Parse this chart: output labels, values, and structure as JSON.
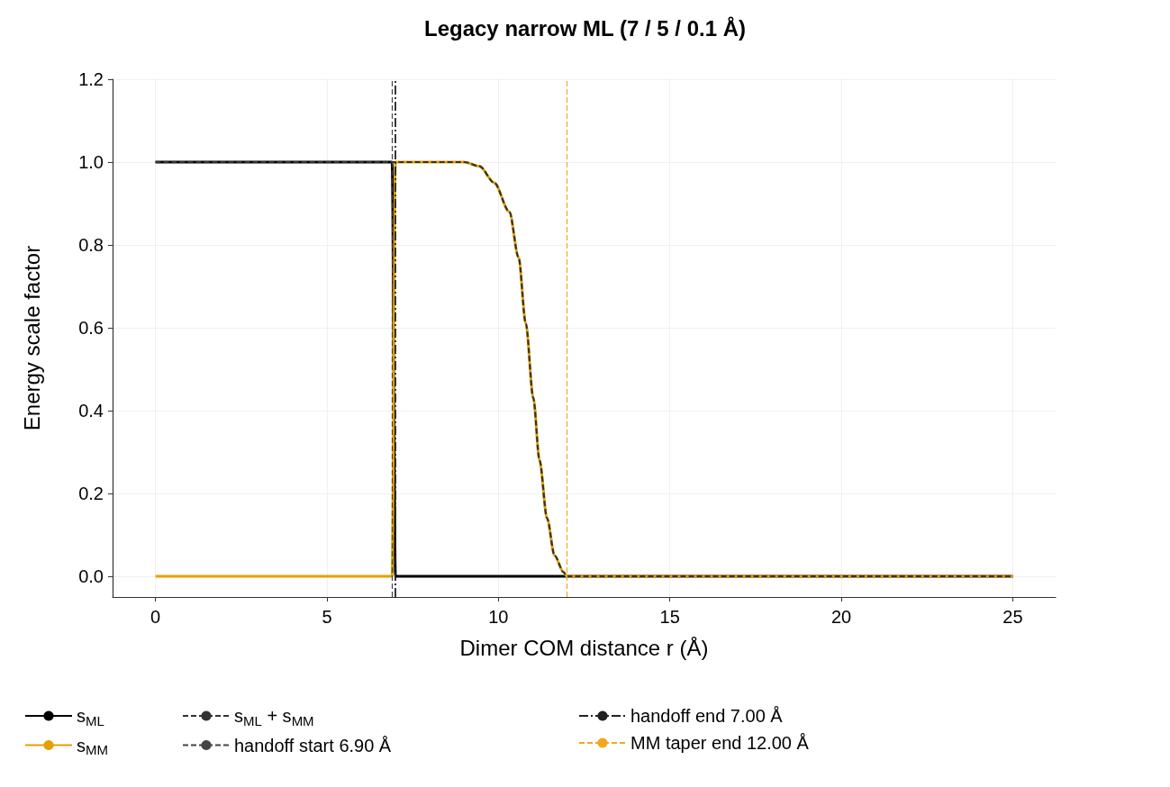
{
  "chart_data": {
    "type": "line",
    "title": "Legacy narrow ML (7 / 5 / 0.1 Å)",
    "xlabel": "Dimer COM distance r (Å)",
    "ylabel": "Energy scale factor",
    "x": [
      0,
      6.9,
      7.0,
      9.0,
      9.45,
      9.88,
      10.32,
      10.59,
      10.8,
      11.02,
      11.2,
      11.42,
      11.64,
      11.9,
      12.0,
      25
    ],
    "series": [
      {
        "name": "s$_{ML}$",
        "color": "#000000",
        "values": [
          1,
          1,
          0,
          0,
          0,
          0,
          0,
          0,
          0,
          0,
          0,
          0,
          0,
          0,
          0,
          0
        ]
      },
      {
        "name": "s$_{MM}$",
        "color": "#e69f00",
        "values": [
          0,
          0,
          1,
          1,
          0.99,
          0.95,
          0.88,
          0.77,
          0.61,
          0.43,
          0.28,
          0.14,
          0.05,
          0.01,
          0,
          0
        ]
      },
      {
        "name": "s$_{ML}$ + s$_{MM}$",
        "color": "#333333",
        "line_style": "dashed",
        "values": [
          1,
          1,
          1,
          1,
          0.99,
          0.95,
          0.88,
          0.77,
          0.61,
          0.43,
          0.28,
          0.14,
          0.05,
          0.01,
          0,
          0
        ]
      }
    ],
    "ref_lines": [
      {
        "axis": "x",
        "value": 6.9,
        "label": "handoff start 6.90 Å",
        "color": "#444444",
        "line_style": "dashed"
      },
      {
        "axis": "x",
        "value": 7.0,
        "label": "handoff end 7.00 Å",
        "color": "#222222",
        "line_style": "dashdot"
      },
      {
        "axis": "x",
        "value": 12.0,
        "label": "MM taper end 12.00 Å",
        "color": "#f0a81e",
        "line_style": "dashed"
      }
    ],
    "xlim": [
      -1.25,
      26.25
    ],
    "xticks": [
      0,
      5,
      10,
      15,
      20,
      25
    ],
    "ylim": [
      -0.05,
      1.2
    ],
    "yticks": [
      {
        "value": 0,
        "label": "0.0"
      },
      0.2,
      0.4,
      0.6,
      0.8,
      {
        "value": 1,
        "label": "1.0"
      },
      1.2
    ],
    "grid": true,
    "legend": "bottom",
    "marker": "none"
  }
}
